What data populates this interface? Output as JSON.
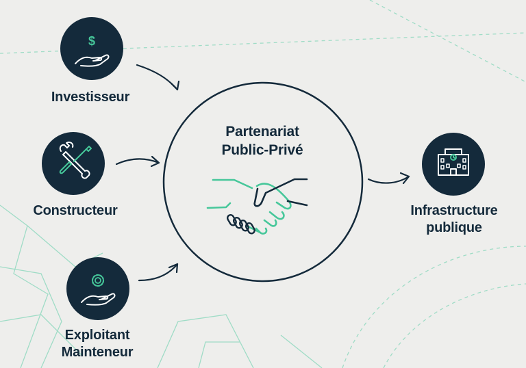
{
  "nodes": {
    "investor": {
      "label": "Investisseur"
    },
    "builder": {
      "label": "Constructeur"
    },
    "operator": {
      "line1": "Exploitant",
      "line2": "Mainteneur"
    },
    "center": {
      "line1": "Partenariat",
      "line2": "Public-Privé"
    },
    "output": {
      "line1": "Infrastructure",
      "line2": "publique"
    }
  },
  "colors": {
    "navy": "#142a3b",
    "accent_green": "#46c79a",
    "background": "#eeeeec",
    "decor_line": "#9fdcc6"
  },
  "icons": {
    "investor": "hand-dollar-icon",
    "builder": "wrench-screwdriver-icon",
    "operator": "hand-gear-icon",
    "center": "handshake-icon",
    "output": "building-icon"
  }
}
